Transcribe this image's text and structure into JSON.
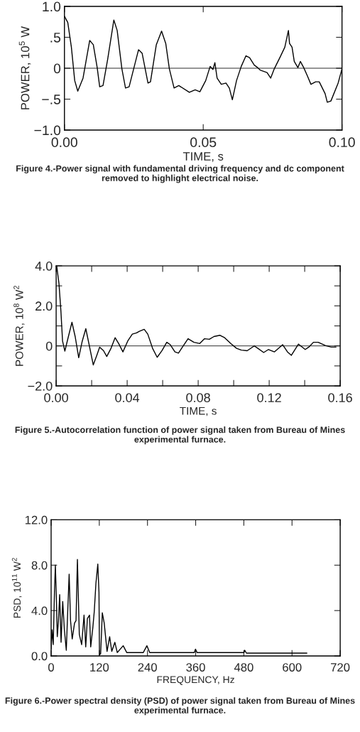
{
  "chart_data": [
    {
      "type": "line",
      "xlabel": "TIME, s",
      "ylabel": "POWER, 10$^{5}$ W",
      "annotations": [
        "Figure 4.-Power signal with fundamental driving frequency and dc component removed to highlight electrical noise."
      ],
      "xlim": [
        0,
        0.1
      ],
      "ylim": [
        -1,
        1
      ],
      "xticks": [
        {
          "value": 0,
          "label": "0.00"
        },
        {
          "value": 0.05,
          "label": "0.05"
        },
        {
          "value": 0.1,
          "label": "0.10"
        }
      ],
      "yticks": [
        {
          "value": -1,
          "label": "−1.0"
        },
        {
          "value": -0.5,
          "label": "−.5"
        },
        0,
        {
          "value": 0.5,
          "label": ".5"
        },
        {
          "value": 1,
          "label": "1.0"
        }
      ],
      "ref_lines": [
        {
          "axis": "y",
          "value": 0,
          "color": "#000000"
        }
      ],
      "grid": false,
      "series": [
        {
          "color": "#000000",
          "x": [
            0,
            0.0012,
            0.0025,
            0.0037,
            0.0048,
            0.0067,
            0.0091,
            0.0104,
            0.0118,
            0.0127,
            0.0139,
            0.0156,
            0.0178,
            0.019,
            0.0207,
            0.022,
            0.0233,
            0.0267,
            0.028,
            0.0301,
            0.031,
            0.0331,
            0.035,
            0.0365,
            0.0378,
            0.0395,
            0.0412,
            0.045,
            0.0471,
            0.0488,
            0.0509,
            0.0525,
            0.0535,
            0.0542,
            0.055,
            0.0565,
            0.0582,
            0.0594,
            0.0605,
            0.062,
            0.0637,
            0.0654,
            0.0667,
            0.0684,
            0.0696,
            0.0705,
            0.073,
            0.0743,
            0.0756,
            0.0777,
            0.0794,
            0.0807,
            0.0811,
            0.082,
            0.0828,
            0.0841,
            0.085,
            0.0862,
            0.0875,
            0.0888,
            0.0905,
            0.0918,
            0.0939,
            0.0947,
            0.096,
            0.0986,
            0.1
          ],
          "values": [
            0.84,
            0.74,
            0.34,
            -0.2,
            -0.37,
            -0.16,
            0.45,
            0.38,
            0.01,
            -0.3,
            -0.28,
            0.15,
            0.78,
            0.61,
            -0.01,
            -0.32,
            -0.3,
            0.3,
            0.24,
            -0.24,
            -0.22,
            0.38,
            0.6,
            0.4,
            -0.01,
            -0.32,
            -0.28,
            -0.39,
            -0.35,
            -0.38,
            -0.2,
            0.03,
            -0.02,
            0.09,
            -0.16,
            -0.26,
            -0.24,
            -0.32,
            -0.51,
            -0.2,
            0.03,
            0.2,
            0.17,
            0.05,
            0.01,
            -0.03,
            -0.07,
            -0.16,
            -0.01,
            0.18,
            0.34,
            0.61,
            0.4,
            0.34,
            0.11,
            0.01,
            0.11,
            0.01,
            -0.12,
            -0.26,
            -0.22,
            -0.22,
            -0.41,
            -0.55,
            -0.53,
            -0.24,
            -0.01
          ]
        }
      ]
    },
    {
      "type": "line",
      "xlabel": "TIME, s",
      "ylabel": "POWER, 10$^{8}$ W$^{2}$",
      "annotations": [
        "Figure 5.-Autocorrelation function of power signal taken from Bureau of Mines experimental furnace."
      ],
      "xlim": [
        0,
        0.16
      ],
      "ylim": [
        -2,
        4
      ],
      "xticks": [
        {
          "value": 0,
          "label": "0.00"
        },
        {
          "value": 0.02,
          "label": null
        },
        {
          "value": 0.04,
          "label": "0.04"
        },
        {
          "value": 0.06,
          "label": null
        },
        {
          "value": 0.08,
          "label": "0.08"
        },
        {
          "value": 0.1,
          "label": null
        },
        {
          "value": 0.12,
          "label": "0.12"
        },
        {
          "value": 0.14,
          "label": null
        },
        {
          "value": 0.16,
          "label": "0.16"
        }
      ],
      "yticks": [
        {
          "value": -2,
          "label": "−2.0"
        },
        {
          "value": -1,
          "label": null
        },
        0,
        {
          "value": 1,
          "label": null
        },
        {
          "value": 2,
          "label": "2.0"
        },
        {
          "value": 3,
          "label": null
        },
        {
          "value": 4,
          "label": "4.0"
        }
      ],
      "ref_lines": [
        {
          "axis": "y",
          "value": 0,
          "color": "#000000"
        }
      ],
      "grid": false,
      "series": [
        {
          "color": "#000000",
          "x": [
            0.0003,
            0.0016,
            0.0027,
            0.0036,
            0.0049,
            0.0069,
            0.0089,
            0.0107,
            0.0127,
            0.0147,
            0.0167,
            0.0187,
            0.0209,
            0.0229,
            0.0245,
            0.0267,
            0.0285,
            0.0309,
            0.0332,
            0.0352,
            0.0376,
            0.0403,
            0.0429,
            0.0453,
            0.0469,
            0.0496,
            0.0516,
            0.0543,
            0.0569,
            0.0596,
            0.0623,
            0.0643,
            0.0669,
            0.0689,
            0.0716,
            0.0743,
            0.0776,
            0.0809,
            0.0836,
            0.0863,
            0.0889,
            0.0923,
            0.0949,
            0.0983,
            0.1016,
            0.1043,
            0.1076,
            0.1116,
            0.1136,
            0.1169,
            0.1196,
            0.1229,
            0.1276,
            0.1303,
            0.1325,
            0.1365,
            0.1403,
            0.1423,
            0.1449,
            0.1476,
            0.1516,
            0.1549,
            0.1576
          ],
          "values": [
            4.0,
            3.1,
            1.7,
            0.24,
            -0.26,
            0.47,
            1.18,
            0.47,
            -0.59,
            0.24,
            0.86,
            0,
            -0.95,
            -0.47,
            -0.06,
            -0.24,
            -0.53,
            -0.12,
            0.41,
            0.12,
            -0.3,
            0.24,
            0.59,
            0.65,
            0.73,
            0.83,
            0.59,
            -0.12,
            -0.57,
            -0.24,
            0.18,
            0.06,
            -0.3,
            -0.36,
            0,
            0.36,
            0.18,
            0.12,
            0.36,
            0.33,
            0.47,
            0.53,
            0.41,
            0.12,
            -0.12,
            -0.21,
            -0.24,
            0,
            -0.12,
            -0.33,
            -0.18,
            -0.3,
            0.06,
            -0.3,
            -0.47,
            0.09,
            -0.18,
            -0.06,
            0.18,
            0.18,
            0.02,
            -0.06,
            -0.06
          ]
        }
      ]
    },
    {
      "type": "line",
      "xlabel": "FREQUENCY, Hz",
      "ylabel": "PSD, 10$^{11}$ W$^{2}$",
      "annotations": [
        "Figure 6.-Power spectral density (PSD) of power signal taken from Bureau of Mines experimental furnace."
      ],
      "xlim": [
        0,
        720
      ],
      "ylim": [
        0,
        12
      ],
      "xticks": [
        0,
        120,
        240,
        360,
        480,
        600,
        720
      ],
      "yticks": [
        {
          "value": 0,
          "label": "0.0"
        },
        {
          "value": 4,
          "label": "4.0"
        },
        {
          "value": 8,
          "label": "8.0"
        },
        {
          "value": 12,
          "label": "12.0"
        }
      ],
      "grid": false,
      "series": [
        {
          "color": "#000000",
          "x": [
            0,
            2.4,
            5.3,
            8.3,
            10.6,
            13,
            15.3,
            18.3,
            21.3,
            24.8,
            28.9,
            33,
            37.8,
            40.7,
            44.9,
            48.4,
            52.5,
            58.4,
            62,
            65.5,
            70.2,
            76.1,
            82,
            86.2,
            90.3,
            95.6,
            98.6,
            103.9,
            107.4,
            111.6,
            116.3,
            119.2,
            120.4,
            123.4,
            127.5,
            132.2,
            139.3,
            145.8,
            151.1,
            158.8,
            164.7,
            179.5,
            188.3,
            214.9,
            229.6,
            238.5,
            245.6,
            285.7,
            356.6,
            359.5,
            363.6,
            480.5,
            482.3,
            486.4,
            637
          ],
          "values": [
            0.6,
            2.3,
            1.0,
            5.6,
            8.0,
            5.2,
            1.7,
            3.1,
            5.4,
            1.2,
            4.8,
            2.3,
            0.5,
            3.3,
            7.2,
            3.1,
            1.5,
            2.9,
            3.1,
            8.5,
            1.9,
            1.0,
            3.6,
            0.8,
            3.3,
            3.6,
            0.8,
            2.5,
            3.9,
            6.4,
            8.1,
            5.6,
            0.1,
            0.2,
            3.8,
            2.9,
            0.4,
            1.7,
            0.4,
            1.2,
            0.3,
            0.9,
            0.3,
            0.3,
            0.3,
            0.9,
            0.3,
            0.3,
            0.3,
            0.6,
            0.3,
            0.3,
            0.5,
            0.25,
            0.25
          ]
        }
      ]
    }
  ]
}
